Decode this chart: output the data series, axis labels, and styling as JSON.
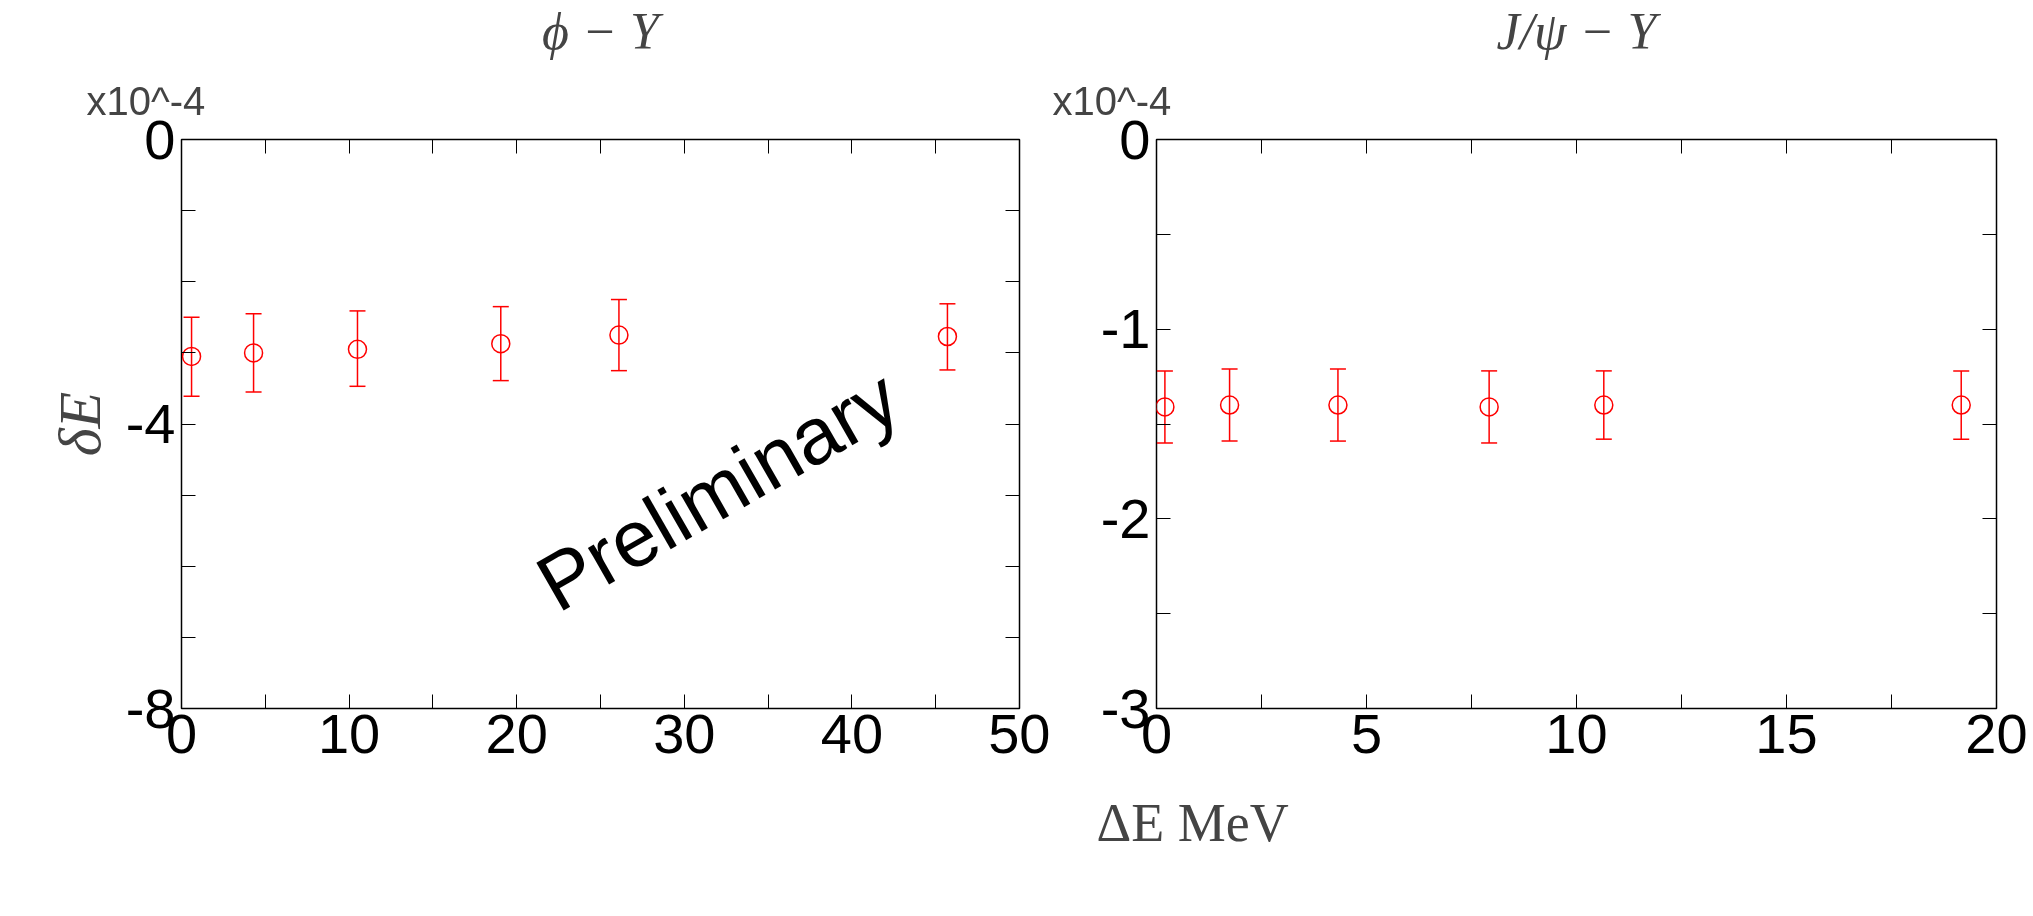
{
  "chart_data": [
    {
      "type": "scatter",
      "title": "ϕ − Υ",
      "ylabel": "δE",
      "annotations": [
        "x10^-4",
        "Preliminary"
      ],
      "x": [
        0.6,
        4.3,
        10.5,
        19.05,
        26.1,
        45.7
      ],
      "series": [
        {
          "color": "#ff0000",
          "values": [
            -3.05,
            -3.0,
            -2.95,
            -2.87,
            -2.75,
            -2.77
          ],
          "errors": [
            [
              -3.61,
              -2.5
            ],
            [
              -3.55,
              -2.45
            ],
            [
              -3.47,
              -2.41
            ],
            [
              -3.39,
              -2.35
            ],
            [
              -3.25,
              -2.25
            ],
            [
              -3.24,
              -2.31
            ]
          ]
        }
      ],
      "xlim": [
        0,
        50
      ],
      "ylim": [
        -8,
        0
      ],
      "xticks": [
        0,
        {
          "value": 5,
          "label": null
        },
        10,
        {
          "value": 15,
          "label": null
        },
        20,
        {
          "value": 25,
          "label": null
        },
        30,
        {
          "value": 35,
          "label": null
        },
        40,
        {
          "value": 45,
          "label": null
        },
        50
      ],
      "yticks": [
        -8,
        {
          "value": -7,
          "label": null
        },
        {
          "value": -6,
          "label": null
        },
        {
          "value": -5,
          "label": null
        },
        -4,
        {
          "value": -3,
          "label": null
        },
        {
          "value": -2,
          "label": null
        },
        {
          "value": -1,
          "label": null
        },
        0
      ],
      "marker": "circle",
      "grid": false
    },
    {
      "type": "scatter",
      "title": "J/ψ − Υ",
      "xlabel": "ΔE  MeV",
      "annotations": [
        "x10^-4"
      ],
      "x": [
        0.2,
        1.74,
        4.32,
        7.92,
        10.65,
        19.16
      ],
      "series": [
        {
          "color": "#ff0000",
          "values": [
            -1.41,
            -1.4,
            -1.4,
            -1.41,
            -1.4,
            -1.4
          ],
          "errors": [
            [
              -1.6,
              -1.22
            ],
            [
              -1.59,
              -1.21
            ],
            [
              -1.59,
              -1.21
            ],
            [
              -1.6,
              -1.22
            ],
            [
              -1.58,
              -1.22
            ],
            [
              -1.58,
              -1.22
            ]
          ]
        }
      ],
      "xlim": [
        0,
        20
      ],
      "ylim": [
        -3,
        0
      ],
      "xticks": [
        0,
        {
          "value": 2.5,
          "label": null
        },
        5,
        {
          "value": 7.5,
          "label": null
        },
        10,
        {
          "value": 12.5,
          "label": null
        },
        15,
        {
          "value": 17.5,
          "label": null
        },
        20
      ],
      "yticks": [
        -3,
        {
          "value": -2.5,
          "label": null
        },
        -2,
        {
          "value": -1.5,
          "label": null
        },
        -1,
        {
          "value": -0.5,
          "label": null
        },
        0
      ],
      "marker": "circle",
      "grid": false
    }
  ]
}
